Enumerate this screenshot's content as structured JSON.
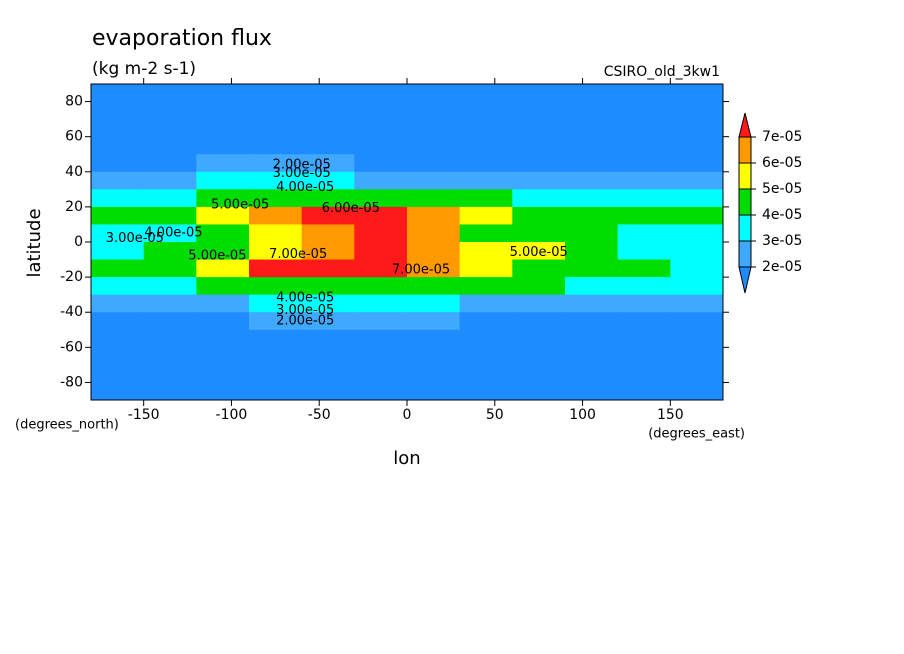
{
  "chart_data": {
    "type": "contour",
    "title": "evaporation flux",
    "subtitle": "(kg m-2 s-1)",
    "source": "CSIRO_old_3kw1",
    "x_label": "lon",
    "y_label": "latitude",
    "x_units": "(degrees_east)",
    "y_units": "(degrees_north)",
    "xlim": [
      -180,
      180
    ],
    "ylim": [
      -90,
      90
    ],
    "xticks": [
      -150,
      -100,
      -50,
      0,
      50,
      100,
      150
    ],
    "yticks": [
      80,
      60,
      40,
      20,
      0,
      -20,
      -40,
      -60,
      -80
    ],
    "lon": [
      -165,
      -135,
      -105,
      -75,
      -45,
      -15,
      15,
      45,
      75,
      105,
      135,
      165
    ],
    "lat": [
      85,
      75,
      65,
      55,
      45,
      35,
      25,
      15,
      5,
      -5,
      -15,
      -25,
      -35,
      -45,
      -55,
      -65,
      -75,
      -85
    ],
    "z": [
      [
        1e-05,
        1e-05,
        1e-05,
        1e-05,
        1e-05,
        1e-05,
        1e-05,
        1e-05,
        1e-05,
        1e-05,
        1e-05,
        1e-05
      ],
      [
        1e-05,
        1e-05,
        1e-05,
        1e-05,
        1e-05,
        1e-05,
        1e-05,
        1e-05,
        1e-05,
        1e-05,
        1e-05,
        1e-05
      ],
      [
        1e-05,
        1e-05,
        1e-05,
        1e-05,
        1e-05,
        1e-05,
        1e-05,
        1e-05,
        1e-05,
        1e-05,
        1e-05,
        1e-05
      ],
      [
        1e-05,
        1e-05,
        1e-05,
        1e-05,
        1e-05,
        1e-05,
        1e-05,
        1e-05,
        1e-05,
        1e-05,
        1e-05,
        1e-05
      ],
      [
        1.5e-05,
        1.8e-05,
        2.2e-05,
        2.3e-05,
        2.1e-05,
        1.9e-05,
        1.9e-05,
        1.9e-05,
        1.8e-05,
        1.7e-05,
        1.7e-05,
        1.6e-05
      ],
      [
        2.2e-05,
        2.8e-05,
        3.3e-05,
        3.5e-05,
        3.2e-05,
        2.8e-05,
        2.8e-05,
        2.8e-05,
        2.3e-05,
        2e-05,
        2.1e-05,
        2.3e-05
      ],
      [
        3.5e-05,
        3.8e-05,
        4.3e-05,
        4.6e-05,
        4.5e-05,
        4.4e-05,
        4.3e-05,
        4e-05,
        3.8e-05,
        3.5e-05,
        3.6e-05,
        3.7e-05
      ],
      [
        4.2e-05,
        4.8e-05,
        5.5e-05,
        6.2e-05,
        7.2e-05,
        7.3e-05,
        6.8e-05,
        5.3e-05,
        4.5e-05,
        4.3e-05,
        4.3e-05,
        4.3e-05
      ],
      [
        3.3e-05,
        3.6e-05,
        4.5e-05,
        5.5e-05,
        6.5e-05,
        7.3e-05,
        6.5e-05,
        4.5e-05,
        4.2e-05,
        4e-05,
        3.7e-05,
        3.4e-05
      ],
      [
        3.5e-05,
        4e-05,
        4.6e-05,
        5.5e-05,
        6.8e-05,
        7e-05,
        6e-05,
        5.5e-05,
        5.3e-05,
        4.3e-05,
        3.8e-05,
        3.3e-05
      ],
      [
        4e-05,
        4.6e-05,
        5.8e-05,
        7.2e-05,
        7.4e-05,
        7.2e-05,
        6.2e-05,
        5e-05,
        4.6e-05,
        4.5e-05,
        4e-05,
        3.4e-05
      ],
      [
        3.5e-05,
        3.8e-05,
        4.2e-05,
        4.5e-05,
        4.5e-05,
        4.4e-05,
        4.3e-05,
        4.1e-05,
        4e-05,
        3.8e-05,
        3.6e-05,
        3.5e-05
      ],
      [
        2.2e-05,
        2.5e-05,
        2.9e-05,
        3.2e-05,
        3.4e-05,
        3.3e-05,
        3.1e-05,
        2.9e-05,
        2.7e-05,
        2.6e-05,
        2.5e-05,
        2.3e-05
      ],
      [
        1.6e-05,
        1.8e-05,
        1.9e-05,
        2.1e-05,
        2.1e-05,
        2e-05,
        2e-05,
        1.9e-05,
        1.8e-05,
        1.8e-05,
        1.7e-05,
        1.6e-05
      ],
      [
        1e-05,
        1e-05,
        1e-05,
        1e-05,
        1e-05,
        1e-05,
        1e-05,
        1e-05,
        1e-05,
        1e-05,
        1e-05,
        1e-05
      ],
      [
        1e-05,
        1e-05,
        1e-05,
        1e-05,
        1e-05,
        1e-05,
        1e-05,
        1e-05,
        1e-05,
        1e-05,
        1e-05,
        1e-05
      ],
      [
        1e-05,
        1e-05,
        1e-05,
        1e-05,
        1e-05,
        1e-05,
        1e-05,
        1e-05,
        1e-05,
        1e-05,
        1e-05,
        1e-05
      ],
      [
        1e-05,
        1e-05,
        1e-05,
        1e-05,
        1e-05,
        1e-05,
        1e-05,
        1e-05,
        1e-05,
        1e-05,
        1e-05,
        1e-05
      ]
    ],
    "levels": [
      {
        "value": 2e-05,
        "label": "2e-05"
      },
      {
        "value": 3e-05,
        "label": "3e-05"
      },
      {
        "value": 4e-05,
        "label": "4e-05"
      },
      {
        "value": 5e-05,
        "label": "5e-05"
      },
      {
        "value": 6e-05,
        "label": "6e-05"
      },
      {
        "value": 7e-05,
        "label": "7e-05"
      }
    ],
    "colors": [
      "#1e8cff",
      "#3fa8ff",
      "#00ffff",
      "#00dd00",
      "#ffff00",
      "#ff9900",
      "#ff1a1a"
    ],
    "contour_labels": [
      {
        "value": 2e-05,
        "label": "2.00e-05",
        "lon": -60,
        "lat": 44
      },
      {
        "value": 3e-05,
        "label": "3.00e-05",
        "lon": -60,
        "lat": 39
      },
      {
        "value": 4e-05,
        "label": "4.00e-05",
        "lon": -58,
        "lat": 31
      },
      {
        "value": 5e-05,
        "label": "5.00e-05",
        "lon": -95,
        "lat": 21
      },
      {
        "value": 6e-05,
        "label": "6.00e-05",
        "lon": -32,
        "lat": 19
      },
      {
        "value": 3e-05,
        "label": "3.00e-05",
        "lon": -155,
        "lat": 2
      },
      {
        "value": 4e-05,
        "label": "4.00e-05",
        "lon": -133,
        "lat": 5
      },
      {
        "value": 5e-05,
        "label": "5.00e-05",
        "lon": -108,
        "lat": -8
      },
      {
        "value": 7e-05,
        "label": "7.00e-05",
        "lon": -62,
        "lat": -7
      },
      {
        "value": 5e-05,
        "label": "5.00e-05",
        "lon": 75,
        "lat": -6
      },
      {
        "value": 7e-05,
        "label": "7.00e-05",
        "lon": 8,
        "lat": -16
      },
      {
        "value": 4e-05,
        "label": "4.00e-05",
        "lon": -58,
        "lat": -32
      },
      {
        "value": 3e-05,
        "label": "3.00e-05",
        "lon": -58,
        "lat": -39
      },
      {
        "value": 2e-05,
        "label": "2.00e-05",
        "lon": -58,
        "lat": -45
      }
    ]
  }
}
